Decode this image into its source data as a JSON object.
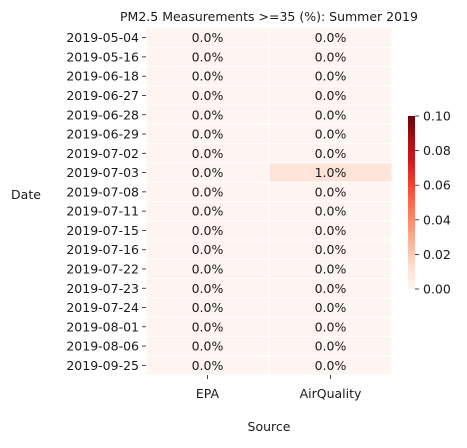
{
  "chart_data": {
    "type": "heatmap",
    "title": "PM2.5 Measurements >=35 (%): Summer 2019",
    "xlabel": "Source",
    "ylabel": "Date",
    "x_categories": [
      "EPA",
      "AirQuality"
    ],
    "y_categories": [
      "2019-05-04",
      "2019-05-16",
      "2019-06-18",
      "2019-06-27",
      "2019-06-28",
      "2019-06-29",
      "2019-07-02",
      "2019-07-03",
      "2019-07-08",
      "2019-07-11",
      "2019-07-15",
      "2019-07-16",
      "2019-07-22",
      "2019-07-23",
      "2019-07-24",
      "2019-08-01",
      "2019-08-06",
      "2019-09-25"
    ],
    "values": [
      [
        0.0,
        0.0
      ],
      [
        0.0,
        0.0
      ],
      [
        0.0,
        0.0
      ],
      [
        0.0,
        0.0
      ],
      [
        0.0,
        0.0
      ],
      [
        0.0,
        0.0
      ],
      [
        0.0,
        0.0
      ],
      [
        0.0,
        0.01
      ],
      [
        0.0,
        0.0
      ],
      [
        0.0,
        0.0
      ],
      [
        0.0,
        0.0
      ],
      [
        0.0,
        0.0
      ],
      [
        0.0,
        0.0
      ],
      [
        0.0,
        0.0
      ],
      [
        0.0,
        0.0
      ],
      [
        0.0,
        0.0
      ],
      [
        0.0,
        0.0
      ],
      [
        0.0,
        0.0
      ]
    ],
    "annotations": [
      [
        "0.0%",
        "0.0%"
      ],
      [
        "0.0%",
        "0.0%"
      ],
      [
        "0.0%",
        "0.0%"
      ],
      [
        "0.0%",
        "0.0%"
      ],
      [
        "0.0%",
        "0.0%"
      ],
      [
        "0.0%",
        "0.0%"
      ],
      [
        "0.0%",
        "0.0%"
      ],
      [
        "0.0%",
        "1.0%"
      ],
      [
        "0.0%",
        "0.0%"
      ],
      [
        "0.0%",
        "0.0%"
      ],
      [
        "0.0%",
        "0.0%"
      ],
      [
        "0.0%",
        "0.0%"
      ],
      [
        "0.0%",
        "0.0%"
      ],
      [
        "0.0%",
        "0.0%"
      ],
      [
        "0.0%",
        "0.0%"
      ],
      [
        "0.0%",
        "0.0%"
      ],
      [
        "0.0%",
        "0.0%"
      ],
      [
        "0.0%",
        "0.0%"
      ]
    ],
    "colormap": "Reds",
    "colorbar": {
      "range": [
        0.0,
        0.1
      ],
      "ticks": [
        0.0,
        0.02,
        0.04,
        0.06,
        0.08,
        0.1
      ],
      "tick_labels": [
        "0.00",
        "0.02",
        "0.04",
        "0.06",
        "0.08",
        "0.10"
      ]
    },
    "colors": {
      "low": "#fff5f0",
      "mid1": "#fcbba1",
      "mid2": "#fb6a4a",
      "mid3": "#cb181d",
      "high": "#67000d",
      "cell_border": "#ffffff"
    }
  }
}
